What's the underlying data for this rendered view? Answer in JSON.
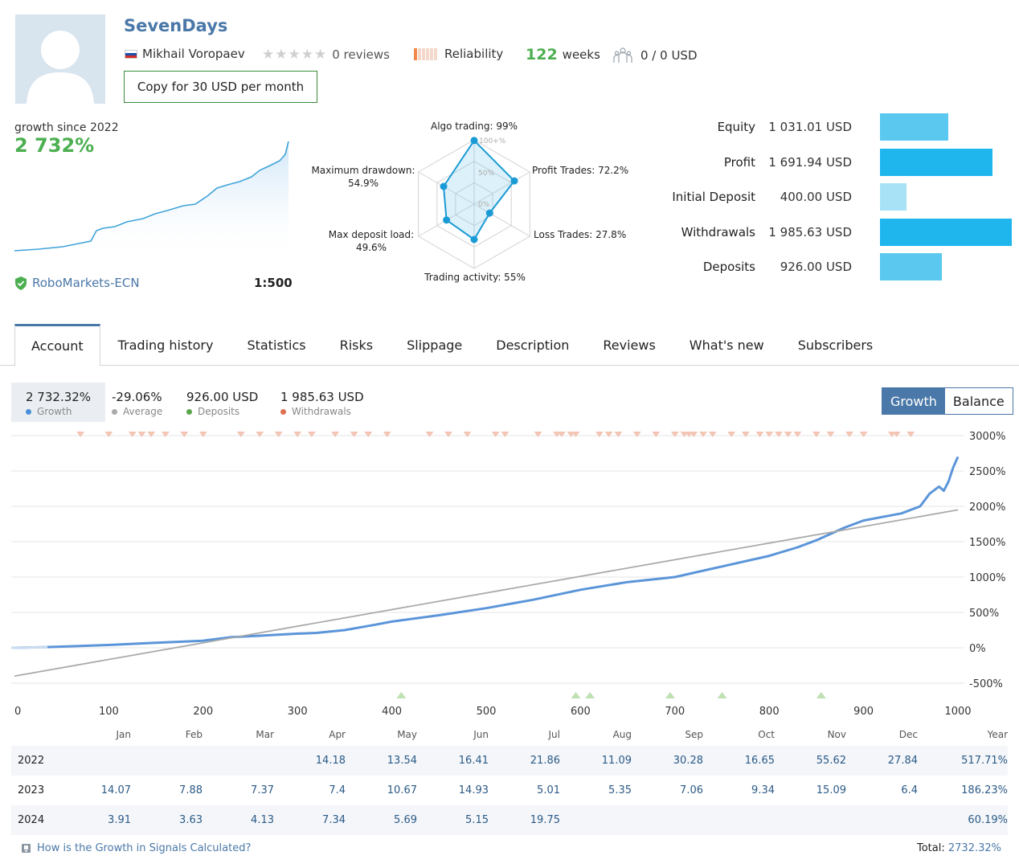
{
  "signal": {
    "name": "SevenDays",
    "author": "Mikhail Voropaev",
    "reviews": "0 reviews",
    "reliability": "Reliability",
    "weeks_num": "122",
    "weeks_word": "weeks",
    "subscribers": "0 / 0 USD",
    "copy_button": "Copy for 30 USD per month",
    "rating_stars": 0,
    "reliability_level": 1
  },
  "growth_summary": {
    "label": "growth since 2022",
    "value": "2 732%",
    "broker": "RoboMarkets-ECN",
    "leverage": "1:500"
  },
  "radar": {
    "labels": {
      "algo": "Algo trading: 99%",
      "profit_trades": "Profit Trades: 72.2%",
      "loss_trades": "Loss Trades: 27.8%",
      "trading_activity": "Trading activity: 55%",
      "max_deposit_load_1": "Max deposit load:",
      "max_deposit_load_2": "49.6%",
      "max_drawdown_1": "Maximum drawdown:",
      "max_drawdown_2": "54.9%"
    },
    "ring_labels": [
      "100+%",
      "50%",
      "0%"
    ],
    "values": [
      99,
      72.2,
      27.8,
      55,
      49.6,
      54.9
    ]
  },
  "stats": [
    {
      "label": "Equity",
      "value": "1 031.01 USD",
      "amount": 1031.01,
      "color": "#5bc8f0"
    },
    {
      "label": "Profit",
      "value": "1 691.94 USD",
      "amount": 1691.94,
      "color": "#1fb6ee"
    },
    {
      "label": "Initial Deposit",
      "value": "400.00 USD",
      "amount": 400.0,
      "color": "#a8e2f7"
    },
    {
      "label": "Withdrawals",
      "value": "1 985.63 USD",
      "amount": 1985.63,
      "color": "#1fb6ee"
    },
    {
      "label": "Deposits",
      "value": "926.00 USD",
      "amount": 926.0,
      "color": "#5bc8f0"
    }
  ],
  "tabs": [
    "Account",
    "Trading history",
    "Statistics",
    "Risks",
    "Slippage",
    "Description",
    "Reviews",
    "What's new",
    "Subscribers"
  ],
  "legend": [
    {
      "value": "2 732.32%",
      "name": "Growth",
      "color": "#4a90d9"
    },
    {
      "value": "-29.06%",
      "name": "Average",
      "color": "#aaaaaa"
    },
    {
      "value": "926.00 USD",
      "name": "Deposits",
      "color": "#5aa64a"
    },
    {
      "value": "1 985.63 USD",
      "name": "Withdrawals",
      "color": "#e07050"
    }
  ],
  "toggle": {
    "growth": "Growth",
    "balance": "Balance"
  },
  "chart_data": {
    "type": "line",
    "x_ticks": [
      "0",
      "100",
      "200",
      "300",
      "400",
      "500",
      "600",
      "700",
      "800",
      "900",
      "1000"
    ],
    "y_ticks": [
      "3000%",
      "2500%",
      "2000%",
      "1500%",
      "1000%",
      "500%",
      "0%",
      "-500%"
    ],
    "xlim": [
      0,
      1000
    ],
    "ylim": [
      -500,
      3000
    ],
    "series": [
      {
        "name": "Growth",
        "color": "#5b95d9",
        "x": [
          0,
          35,
          100,
          150,
          200,
          230,
          260,
          300,
          320,
          350,
          380,
          400,
          450,
          500,
          550,
          600,
          650,
          700,
          750,
          800,
          830,
          850,
          880,
          900,
          920,
          940,
          960,
          970,
          980,
          985,
          990,
          995,
          1000
        ],
        "y": [
          0,
          10,
          40,
          70,
          100,
          150,
          170,
          200,
          210,
          250,
          320,
          370,
          460,
          560,
          680,
          820,
          930,
          1000,
          1150,
          1300,
          1420,
          1520,
          1700,
          1800,
          1850,
          1900,
          2000,
          2180,
          2280,
          2220,
          2350,
          2550,
          2700
        ]
      },
      {
        "name": "Average",
        "color": "#aaaaaa",
        "x": [
          0,
          1000
        ],
        "y": [
          -400,
          1950
        ]
      }
    ],
    "deposit_markers_x": [
      410,
      595,
      610,
      695,
      750,
      855
    ],
    "withdrawal_markers_x": [
      70,
      100,
      125,
      135,
      145,
      160,
      180,
      200,
      240,
      260,
      280,
      300,
      315,
      340,
      360,
      375,
      395,
      440,
      460,
      480,
      510,
      520,
      555,
      575,
      580,
      590,
      595,
      620,
      630,
      640,
      660,
      680,
      700,
      710,
      715,
      720,
      730,
      740,
      760,
      775,
      790,
      800,
      810,
      820,
      830,
      850,
      865,
      885,
      900,
      930,
      935,
      950
    ]
  },
  "monthly": {
    "months": [
      "Jan",
      "Feb",
      "Mar",
      "Apr",
      "May",
      "Jun",
      "Jul",
      "Aug",
      "Sep",
      "Oct",
      "Nov",
      "Dec"
    ],
    "year_header": "Year",
    "rows": [
      {
        "year": "2022",
        "values": [
          "",
          "",
          "",
          "14.18",
          "13.54",
          "16.41",
          "21.86",
          "11.09",
          "30.28",
          "16.65",
          "55.62",
          "27.84"
        ],
        "total": "517.71%"
      },
      {
        "year": "2023",
        "values": [
          "14.07",
          "7.88",
          "7.37",
          "7.4",
          "10.67",
          "14.93",
          "5.01",
          "5.35",
          "7.06",
          "9.34",
          "15.09",
          "6.4"
        ],
        "total": "186.23%"
      },
      {
        "year": "2024",
        "values": [
          "3.91",
          "3.63",
          "4.13",
          "7.34",
          "5.69",
          "5.15",
          "19.75",
          "",
          "",
          "",
          "",
          ""
        ],
        "total": "60.19%"
      }
    ]
  },
  "footer": {
    "question": "How is the Growth in Signals Calculated?",
    "total_label": "Total:",
    "total_value": "2732.32%"
  }
}
